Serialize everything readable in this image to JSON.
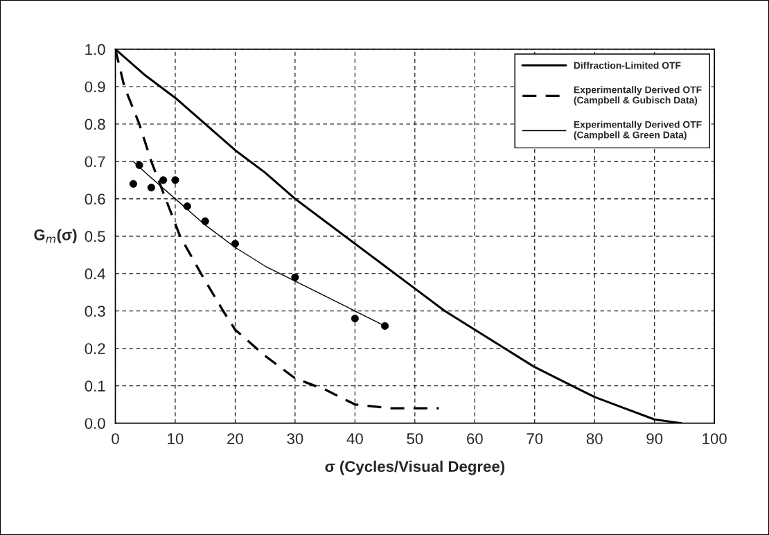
{
  "chart_data": {
    "type": "line",
    "xlabel": "σ (Cycles/Visual Degree)",
    "ylabel": "G$_{m}$(σ)",
    "xlim": [
      0,
      100
    ],
    "ylim": [
      0,
      1
    ],
    "xticks": [
      0,
      10,
      20,
      30,
      40,
      50,
      60,
      70,
      80,
      90,
      100
    ],
    "yticks": [
      {
        "value": 0,
        "label": "0.0"
      },
      {
        "value": 0.1,
        "label": "0.1"
      },
      {
        "value": 0.2,
        "label": "0.2"
      },
      {
        "value": 0.3,
        "label": "0.3"
      },
      {
        "value": 0.4,
        "label": "0.4"
      },
      {
        "value": 0.5,
        "label": "0.5"
      },
      {
        "value": 0.6,
        "label": "0.6"
      },
      {
        "value": 0.7,
        "label": "0.7"
      },
      {
        "value": 0.8,
        "label": "0.8"
      },
      {
        "value": 0.9,
        "label": "0.9"
      },
      {
        "value": 1,
        "label": "1.0"
      }
    ],
    "grid": true,
    "legend": "top right",
    "series": [
      {
        "name": "Diffraction-Limited OTF",
        "color": "#000000",
        "line_style": "solid",
        "x": [
          0,
          5,
          10,
          15,
          20,
          25,
          30,
          35,
          40,
          45,
          50,
          55,
          60,
          65,
          70,
          75,
          80,
          85,
          90,
          94.5
        ],
        "values": [
          1.0,
          0.93,
          0.87,
          0.8,
          0.73,
          0.67,
          0.6,
          0.54,
          0.48,
          0.42,
          0.36,
          0.3,
          0.25,
          0.2,
          0.15,
          0.11,
          0.07,
          0.04,
          0.01,
          0.0
        ]
      },
      {
        "name": "Experimentally Derived OTF\n(Campbell & Gubisch Data)",
        "color": "#000000",
        "line_style": "dashed",
        "x": [
          0,
          1.5,
          4,
          6,
          8.4,
          10.8,
          14.3,
          18,
          20,
          25,
          30,
          35,
          40,
          46,
          50,
          54
        ],
        "values": [
          1.0,
          0.9,
          0.8,
          0.7,
          0.6,
          0.5,
          0.4,
          0.3,
          0.25,
          0.18,
          0.12,
          0.09,
          0.05,
          0.04,
          0.04,
          0.04
        ]
      },
      {
        "name": "Experimentally Derived OTF\n(Campbell & Green Data)",
        "color": "#000000",
        "line_style": "solid",
        "x": [
          3,
          5,
          10,
          15,
          20,
          25,
          30,
          35,
          40,
          45
        ],
        "values": [
          0.7,
          0.67,
          0.6,
          0.53,
          0.47,
          0.42,
          0.38,
          0.34,
          0.3,
          0.26
        ]
      },
      {
        "type": "scatter",
        "marker": "circle",
        "color": "#000000",
        "x": [
          3,
          4,
          6,
          8,
          10,
          12,
          15,
          20,
          30,
          40,
          45
        ],
        "values": [
          0.64,
          0.69,
          0.63,
          0.65,
          0.65,
          0.58,
          0.54,
          0.48,
          0.39,
          0.28,
          0.26
        ]
      }
    ]
  }
}
